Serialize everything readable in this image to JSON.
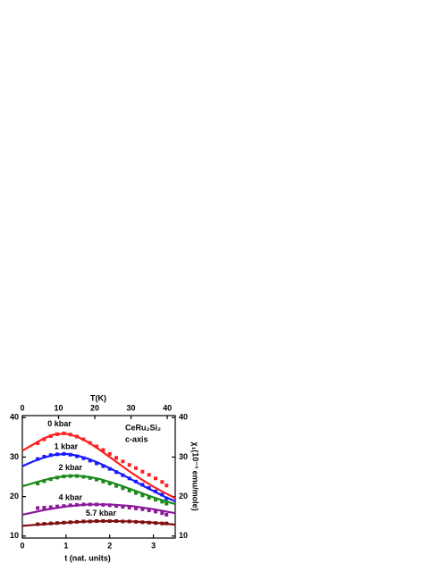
{
  "chart_data": {
    "type": "scatter",
    "xlabel": "t (nat. units)",
    "x2label": "T(K)",
    "y2label": "χ₁(10⁻³ emu/mole)",
    "annotations": [
      "CeRu₂Si₂",
      "c-axis"
    ],
    "xlim": [
      0,
      3.5
    ],
    "xticks": [
      0,
      1,
      2,
      3
    ],
    "x2lim": [
      0,
      42.2
    ],
    "x2ticks": [
      0,
      10,
      20,
      30,
      40
    ],
    "ylim": [
      9.5,
      40.5
    ],
    "yticks": [
      10,
      20,
      30,
      40
    ],
    "y2lim": [
      9.5,
      40.5
    ],
    "y2ticks": [
      10,
      20,
      30,
      40
    ],
    "series": [
      {
        "name": "0 kbar",
        "color": "#ff2020",
        "x": [
          0.35,
          0.5,
          0.65,
          0.8,
          0.95,
          1.1,
          1.25,
          1.4,
          1.55,
          1.7,
          1.85,
          2.0,
          2.15,
          2.3,
          2.45,
          2.6,
          2.75,
          2.9,
          3.05,
          3.2,
          3.3
        ],
        "values": [
          33.5,
          34.5,
          35.3,
          35.8,
          36.0,
          35.7,
          35.2,
          34.5,
          33.6,
          32.7,
          31.8,
          30.8,
          29.8,
          28.9,
          28.0,
          27.2,
          26.3,
          25.5,
          24.6,
          23.7,
          22.8
        ],
        "fit_x": [
          0,
          0.25,
          0.5,
          0.75,
          1.0,
          1.25,
          1.5,
          1.75,
          2.0,
          2.25,
          2.5,
          2.75,
          3.0,
          3.25,
          3.5
        ],
        "fit_values": [
          31.6,
          33.2,
          34.8,
          35.8,
          35.9,
          35.2,
          33.8,
          32.0,
          30.0,
          28.0,
          26.0,
          24.2,
          22.5,
          21.0,
          19.6
        ]
      },
      {
        "name": "1 kbar",
        "color": "#1a1aff",
        "x": [
          0.35,
          0.5,
          0.65,
          0.8,
          0.95,
          1.1,
          1.25,
          1.4,
          1.55,
          1.7,
          1.85,
          2.0,
          2.15,
          2.3,
          2.45,
          2.6,
          2.75,
          2.9,
          3.05,
          3.2,
          3.3
        ],
        "values": [
          29.5,
          30.1,
          30.5,
          30.7,
          30.8,
          30.6,
          30.2,
          29.7,
          29.1,
          28.4,
          27.7,
          27.0,
          26.2,
          25.4,
          24.6,
          23.8,
          23.0,
          22.2,
          21.3,
          20.5,
          19.5
        ],
        "fit_x": [
          0,
          0.25,
          0.5,
          0.75,
          1.0,
          1.25,
          1.5,
          1.75,
          2.0,
          2.25,
          2.5,
          2.75,
          3.0,
          3.25,
          3.5
        ],
        "fit_values": [
          27.7,
          28.9,
          29.9,
          30.6,
          30.8,
          30.4,
          29.6,
          28.5,
          27.2,
          25.8,
          24.3,
          22.8,
          21.4,
          20.0,
          18.8
        ]
      },
      {
        "name": "2 kbar",
        "color": "#1a8a1a",
        "x": [
          0.35,
          0.5,
          0.65,
          0.8,
          0.95,
          1.1,
          1.25,
          1.4,
          1.55,
          1.7,
          1.85,
          2.0,
          2.15,
          2.3,
          2.45,
          2.6,
          2.75,
          2.9,
          3.05,
          3.2,
          3.3
        ],
        "values": [
          23.3,
          23.9,
          24.4,
          24.8,
          25.1,
          25.2,
          25.2,
          25.0,
          24.7,
          24.3,
          23.8,
          23.3,
          22.7,
          22.1,
          21.5,
          20.9,
          20.3,
          19.7,
          19.2,
          18.7,
          18.2
        ],
        "fit_x": [
          0,
          0.25,
          0.5,
          0.75,
          1.0,
          1.25,
          1.5,
          1.75,
          2.0,
          2.25,
          2.5,
          2.75,
          3.0,
          3.25,
          3.5
        ],
        "fit_values": [
          22.6,
          23.4,
          24.2,
          24.8,
          25.2,
          25.3,
          25.0,
          24.5,
          23.7,
          22.8,
          21.8,
          20.8,
          19.8,
          18.9,
          18.1
        ]
      },
      {
        "name": "4 kbar",
        "color": "#8a1a9a",
        "x": [
          0.35,
          0.5,
          0.65,
          0.8,
          0.95,
          1.1,
          1.25,
          1.4,
          1.55,
          1.7,
          1.85,
          2.0,
          2.15,
          2.3,
          2.45,
          2.6,
          2.75,
          2.9,
          3.05,
          3.2,
          3.3
        ],
        "values": [
          17.1,
          17.2,
          17.3,
          17.5,
          17.6,
          17.8,
          17.9,
          18.0,
          18.0,
          18.0,
          17.9,
          17.8,
          17.6,
          17.4,
          17.2,
          17.0,
          16.8,
          16.5,
          16.2,
          15.8,
          15.4
        ],
        "fit_x": [
          0,
          0.5,
          1.0,
          1.5,
          2.0,
          2.5,
          3.0,
          3.5
        ],
        "fit_values": [
          15.4,
          16.6,
          17.5,
          18.0,
          18.0,
          17.6,
          16.8,
          15.8
        ]
      },
      {
        "name": "5.7 kbar",
        "color": "#801010",
        "x": [
          0.35,
          0.5,
          0.65,
          0.8,
          0.95,
          1.1,
          1.25,
          1.4,
          1.55,
          1.7,
          1.85,
          2.0,
          2.15,
          2.3,
          2.45,
          2.6,
          2.75,
          2.9,
          3.05,
          3.2,
          3.3
        ],
        "values": [
          13.0,
          13.1,
          13.2,
          13.3,
          13.4,
          13.5,
          13.6,
          13.7,
          13.7,
          13.8,
          13.8,
          13.8,
          13.8,
          13.7,
          13.7,
          13.6,
          13.5,
          13.4,
          13.3,
          13.2,
          13.2
        ],
        "fit_x": [
          0,
          0.5,
          1.0,
          1.5,
          2.0,
          2.5,
          3.0,
          3.5
        ],
        "fit_values": [
          12.6,
          13.0,
          13.4,
          13.7,
          13.8,
          13.7,
          13.4,
          12.9
        ]
      }
    ]
  }
}
